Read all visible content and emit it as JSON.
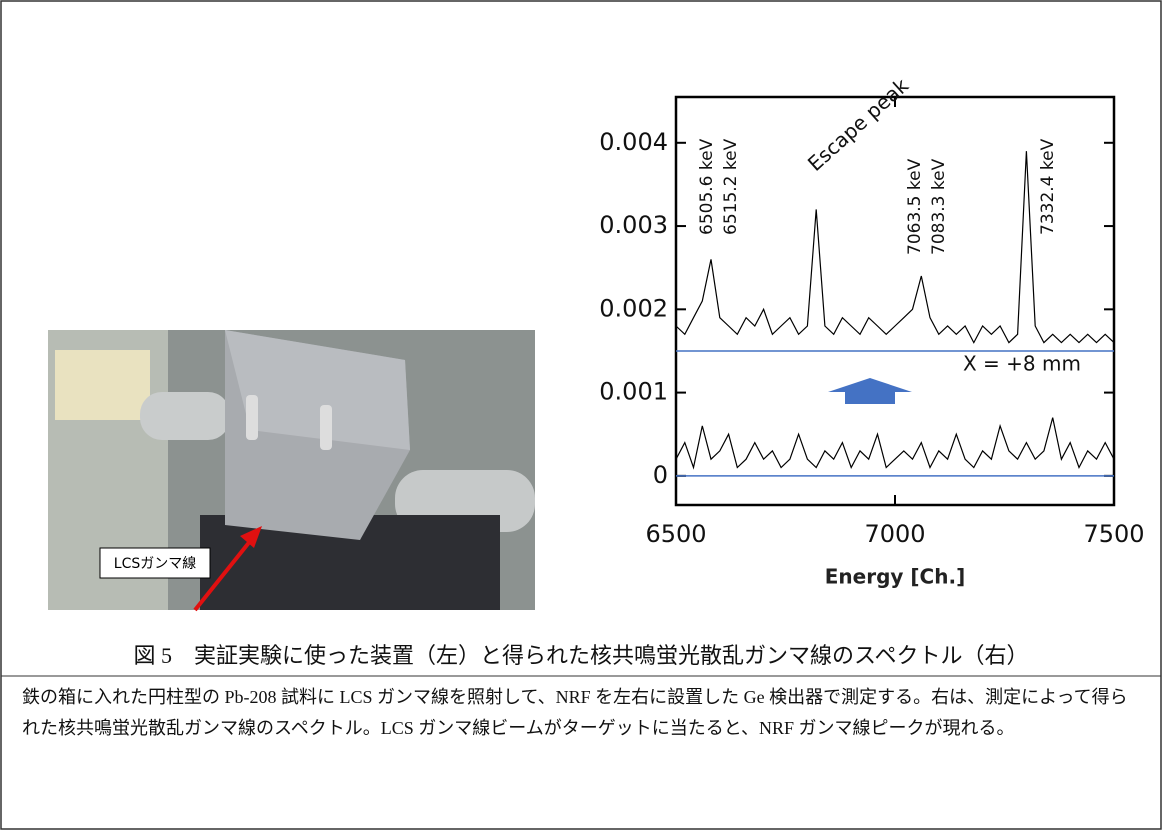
{
  "chart_data": {
    "type": "line",
    "x": [
      6500,
      6520,
      6540,
      6560,
      6580,
      6600,
      6620,
      6640,
      6660,
      6680,
      6700,
      6720,
      6740,
      6760,
      6780,
      6800,
      6820,
      6840,
      6860,
      6880,
      6900,
      6920,
      6940,
      6960,
      6980,
      7000,
      7020,
      7040,
      7060,
      7080,
      7100,
      7120,
      7140,
      7160,
      7180,
      7200,
      7220,
      7240,
      7260,
      7280,
      7300,
      7320,
      7340,
      7360,
      7380,
      7400,
      7420,
      7440,
      7460,
      7480,
      7500
    ],
    "series": [
      {
        "color": "#000000",
        "values": [
          0.0018,
          0.0017,
          0.0019,
          0.0021,
          0.0026,
          0.0019,
          0.0018,
          0.0017,
          0.0019,
          0.0018,
          0.002,
          0.0017,
          0.0018,
          0.0019,
          0.0017,
          0.0018,
          0.0032,
          0.0018,
          0.0017,
          0.0019,
          0.0018,
          0.0017,
          0.0019,
          0.0018,
          0.0017,
          0.0018,
          0.0019,
          0.002,
          0.0024,
          0.0019,
          0.0017,
          0.0018,
          0.0017,
          0.0018,
          0.0016,
          0.0018,
          0.0017,
          0.0018,
          0.0016,
          0.0017,
          0.0039,
          0.0018,
          0.0016,
          0.0017,
          0.0016,
          0.0017,
          0.0016,
          0.0017,
          0.0016,
          0.0017,
          0.0016
        ]
      },
      {
        "color": "#000000",
        "values": [
          0.0002,
          0.0004,
          0.0001,
          0.0006,
          0.0002,
          0.0003,
          0.0005,
          0.0001,
          0.0002,
          0.0004,
          0.0002,
          0.0003,
          0.0001,
          0.0002,
          0.0005,
          0.0002,
          0.0001,
          0.0003,
          0.0002,
          0.0004,
          0.0001,
          0.0003,
          0.0002,
          0.0005,
          0.0001,
          0.0002,
          0.0003,
          0.0002,
          0.0004,
          0.0001,
          0.0003,
          0.0002,
          0.0005,
          0.0002,
          0.0001,
          0.0003,
          0.0002,
          0.0006,
          0.0003,
          0.0002,
          0.0004,
          0.0002,
          0.0003,
          0.0007,
          0.0002,
          0.0004,
          0.0001,
          0.0003,
          0.0002,
          0.0004,
          0.0002
        ]
      }
    ],
    "reference_lines": [
      {
        "value": 0.0015,
        "color": "#4472c4"
      },
      {
        "value": 0,
        "color": "#4472c4"
      }
    ],
    "xlabel": "Energy [Ch.]",
    "xlim": [
      6500,
      7500
    ],
    "xticks": [
      6500,
      7000,
      7500
    ],
    "ylim": [
      -0.00035,
      0.00455
    ],
    "yticks": [
      0,
      0.001,
      0.002,
      0.003,
      0.004
    ],
    "annotations": [
      "6505.6 keV",
      "6515.2 keV",
      "7063.5 keV",
      "7083.3 keV",
      "7332.4 keV",
      "Escape peak",
      "X = +8 mm"
    ]
  },
  "photo_label": "LCSガンマ線",
  "caption": "図 5　実証実験に使った装置（左）と得られた核共鳴蛍光散乱ガンマ線のスペクトル（右）",
  "description": "鉄の箱に入れた円柱型の Pb-208 試料に LCS ガンマ線を照射して、NRF を左右に設置した Ge 検出器で測定する。右は、測定によって得られた核共鳴蛍光散乱ガンマ線のスペクトル。LCS ガンマ線ビームがターゲットに当たると、NRF ガンマ線ピークが現れる。"
}
